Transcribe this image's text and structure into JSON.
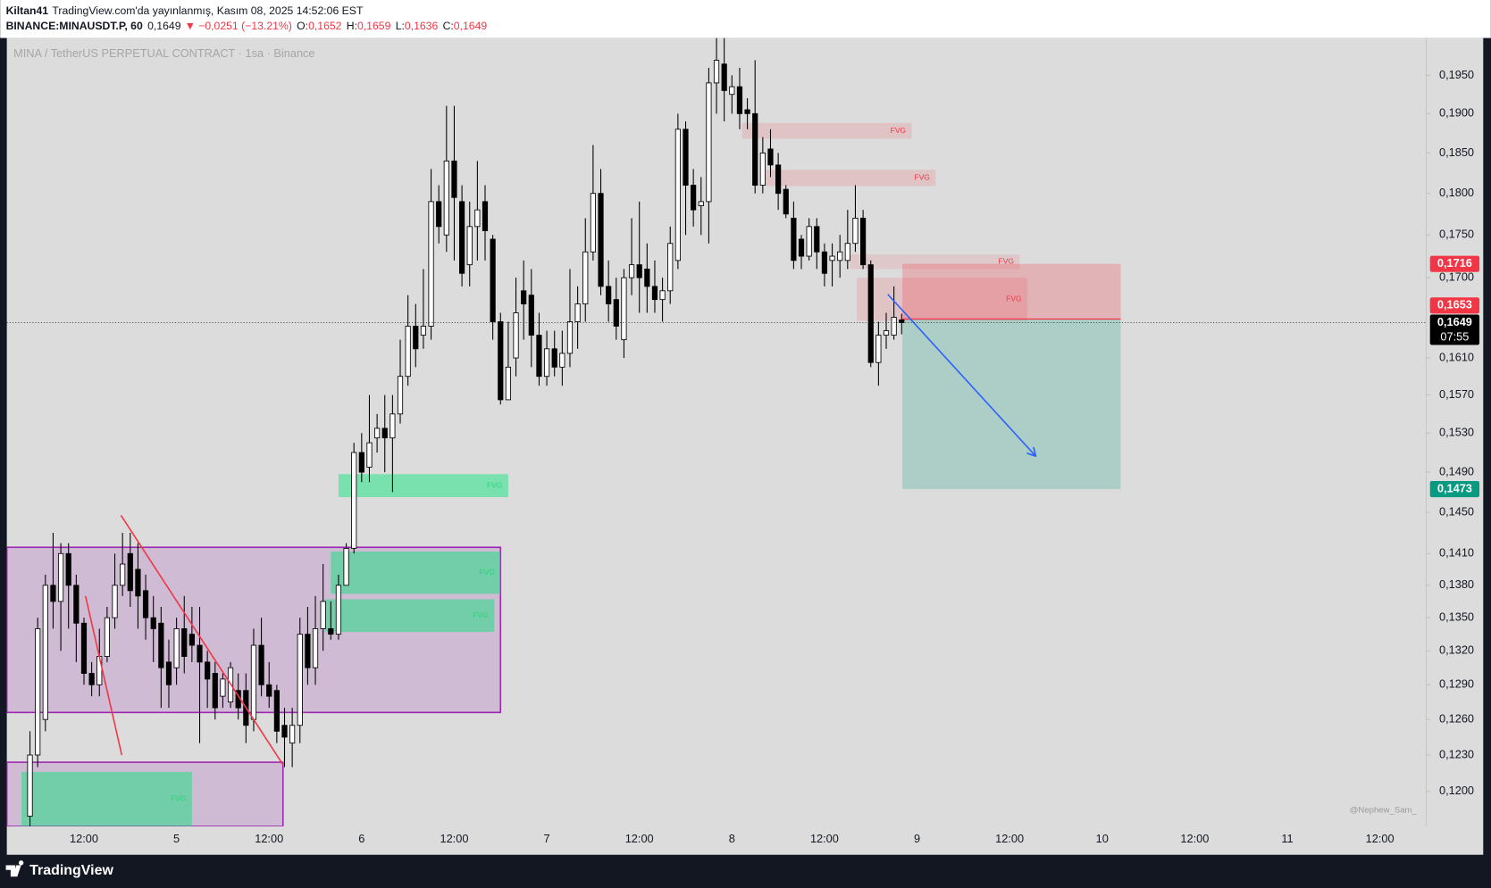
{
  "header": {
    "author": "Kiltan41",
    "published": "TradingView.com'da yayınlanmış, Kasım 08, 2025 14:52:06 EST",
    "symbol": "BINANCE:MINAUSDT.P, 60",
    "last": "0,1649",
    "change": "▼ −0,0251 (−13.21%)",
    "ohlc": [
      {
        "key": "O:",
        "value": "0,1652"
      },
      {
        "key": "H:",
        "value": "0,1659"
      },
      {
        "key": "L:",
        "value": "0,1636"
      },
      {
        "key": "C:",
        "value": "0,1649"
      }
    ]
  },
  "footer": {
    "brand": "TradingView"
  },
  "chart_data": {
    "type": "candlestick",
    "watermark": "MINA / TetherUS PERPETUAL CONTRACT · 1sa · Binance",
    "credit": "@Nephew_Sam_",
    "log_scale": true,
    "grid": false,
    "up_color": "#ffffff",
    "down_color": "#000000",
    "wick_color": "#000000",
    "ylim": [
      0.1172,
      0.2
    ],
    "yticks": [
      {
        "value": 0.195,
        "label": "0,1950"
      },
      {
        "value": 0.19,
        "label": "0,1900"
      },
      {
        "value": 0.185,
        "label": "0,1850"
      },
      {
        "value": 0.18,
        "label": "0,1800"
      },
      {
        "value": 0.175,
        "label": "0,1750"
      },
      {
        "value": 0.17,
        "label": "0,1700"
      },
      {
        "value": 0.161,
        "label": "0,1610"
      },
      {
        "value": 0.157,
        "label": "0,1570"
      },
      {
        "value": 0.153,
        "label": "0,1530"
      },
      {
        "value": 0.149,
        "label": "0,1490"
      },
      {
        "value": 0.145,
        "label": "0,1450"
      },
      {
        "value": 0.141,
        "label": "0,1410"
      },
      {
        "value": 0.138,
        "label": "0,1380"
      },
      {
        "value": 0.135,
        "label": "0,1350"
      },
      {
        "value": 0.132,
        "label": "0,1320"
      },
      {
        "value": 0.129,
        "label": "0,1290"
      },
      {
        "value": 0.126,
        "label": "0,1260"
      },
      {
        "value": 0.123,
        "label": "0,1230"
      },
      {
        "value": 0.12,
        "label": "0,1200"
      }
    ],
    "xlim": [
      2,
      186
    ],
    "xticks": [
      {
        "value": 12,
        "label": "12:00"
      },
      {
        "value": 24,
        "label": "5"
      },
      {
        "value": 36,
        "label": "12:00"
      },
      {
        "value": 48,
        "label": "6"
      },
      {
        "value": 60,
        "label": "12:00"
      },
      {
        "value": 72,
        "label": "7"
      },
      {
        "value": 84,
        "label": "12:00"
      },
      {
        "value": 96,
        "label": "8"
      },
      {
        "value": 108,
        "label": "12:00"
      },
      {
        "value": 120,
        "label": "9"
      },
      {
        "value": 132,
        "label": "12:00"
      },
      {
        "value": 144,
        "label": "10"
      },
      {
        "value": 156,
        "label": "12:00"
      },
      {
        "value": 168,
        "label": "11"
      },
      {
        "value": 180,
        "label": "12:00"
      }
    ],
    "x": [
      5,
      6,
      7,
      8,
      9,
      10,
      11,
      12,
      13,
      14,
      15,
      16,
      17,
      18,
      19,
      20,
      21,
      22,
      23,
      24,
      25,
      26,
      27,
      28,
      29,
      30,
      31,
      32,
      33,
      34,
      35,
      36,
      37,
      38,
      39,
      40,
      41,
      42,
      43,
      44,
      45,
      46,
      47,
      48,
      49,
      50,
      51,
      52,
      53,
      54,
      55,
      56,
      57,
      58,
      59,
      60,
      61,
      62,
      63,
      64,
      65,
      66,
      67,
      68,
      69,
      70,
      71,
      72,
      73,
      74,
      75,
      76,
      77,
      78,
      79,
      80,
      81,
      82,
      83,
      84,
      85,
      86,
      87,
      88,
      89,
      90,
      91,
      92,
      93,
      94,
      95,
      96,
      97,
      98,
      99,
      100,
      101,
      102,
      103,
      104,
      105,
      106,
      107,
      108,
      109,
      110,
      111,
      112,
      113,
      114,
      115,
      116,
      117,
      118
    ],
    "open": [
      0.118,
      0.123,
      0.126,
      0.138,
      0.1365,
      0.141,
      0.138,
      0.1345,
      0.13,
      0.129,
      0.1315,
      0.135,
      0.138,
      0.141,
      0.1395,
      0.1375,
      0.135,
      0.1345,
      0.131,
      0.1305,
      0.134,
      0.1335,
      0.1325,
      0.131,
      0.13,
      0.128,
      0.1275,
      0.1285,
      0.1285,
      0.126,
      0.1325,
      0.129,
      0.1285,
      0.1255,
      0.124,
      0.1255,
      0.1335,
      0.1305,
      0.134,
      0.134,
      0.1335,
      0.138,
      0.1415,
      0.151,
      0.1495,
      0.1525,
      0.1535,
      0.1525,
      0.155,
      0.159,
      0.1645,
      0.1635,
      0.1645,
      0.179,
      0.175,
      0.184,
      0.179,
      0.1715,
      0.176,
      0.179,
      0.1745,
      0.165,
      0.1565,
      0.161,
      0.1685,
      0.168,
      0.1635,
      0.159,
      0.162,
      0.16,
      0.1615,
      0.165,
      0.167,
      0.173,
      0.18,
      0.169,
      0.1675,
      0.163,
      0.17,
      0.1715,
      0.171,
      0.169,
      0.1675,
      0.1685,
      0.172,
      0.188,
      0.181,
      0.1785,
      0.179,
      0.194,
      0.1965,
      0.1925,
      0.1935,
      0.1905,
      0.19,
      0.181,
      0.1855,
      0.1835,
      0.1805,
      0.177,
      0.1745,
      0.1725,
      0.176,
      0.173,
      0.172,
      0.172,
      0.172,
      0.174,
      0.177,
      0.1715,
      0.1605,
      0.1635,
      0.1635,
      0.1652
    ],
    "high": [
      0.125,
      0.135,
      0.139,
      0.143,
      0.142,
      0.142,
      0.139,
      0.135,
      0.131,
      0.134,
      0.136,
      0.141,
      0.143,
      0.143,
      0.142,
      0.139,
      0.137,
      0.136,
      0.133,
      0.135,
      0.137,
      0.136,
      0.136,
      0.132,
      0.131,
      0.13,
      0.131,
      0.13,
      0.13,
      0.134,
      0.135,
      0.131,
      0.129,
      0.127,
      0.127,
      0.135,
      0.136,
      0.137,
      0.14,
      0.1365,
      0.139,
      0.142,
      0.152,
      0.153,
      0.157,
      0.155,
      0.157,
      0.157,
      0.163,
      0.168,
      0.167,
      0.171,
      0.183,
      0.181,
      0.191,
      0.191,
      0.181,
      0.179,
      0.184,
      0.181,
      0.175,
      0.166,
      0.165,
      0.17,
      0.172,
      0.171,
      0.166,
      0.164,
      0.164,
      0.164,
      0.171,
      0.169,
      0.177,
      0.186,
      0.183,
      0.172,
      0.17,
      0.171,
      0.177,
      0.179,
      0.174,
      0.172,
      0.17,
      0.176,
      0.19,
      0.189,
      0.183,
      0.182,
      0.196,
      0.2,
      0.2,
      0.195,
      0.196,
      0.192,
      0.197,
      0.187,
      0.188,
      0.185,
      0.181,
      0.179,
      0.175,
      0.177,
      0.177,
      0.174,
      0.174,
      0.175,
      0.178,
      0.181,
      0.178,
      0.172,
      0.165,
      0.166,
      0.169,
      0.1659
    ],
    "low": [
      0.117,
      0.122,
      0.125,
      0.134,
      0.132,
      0.134,
      0.131,
      0.129,
      0.128,
      0.128,
      0.131,
      0.134,
      0.137,
      0.136,
      0.134,
      0.133,
      0.131,
      0.127,
      0.127,
      0.129,
      0.13,
      0.131,
      0.124,
      0.127,
      0.126,
      0.127,
      0.127,
      0.126,
      0.124,
      0.125,
      0.128,
      0.127,
      0.124,
      0.122,
      0.122,
      0.124,
      0.129,
      0.129,
      0.132,
      0.133,
      0.133,
      0.138,
      0.141,
      0.148,
      0.148,
      0.151,
      0.149,
      0.147,
      0.154,
      0.158,
      0.16,
      0.162,
      0.163,
      0.174,
      0.173,
      0.172,
      0.169,
      0.169,
      0.172,
      0.172,
      0.163,
      0.156,
      0.1565,
      0.159,
      0.163,
      0.16,
      0.158,
      0.158,
      0.159,
      0.158,
      0.16,
      0.162,
      0.165,
      0.172,
      0.168,
      0.165,
      0.163,
      0.161,
      0.168,
      0.166,
      0.166,
      0.166,
      0.165,
      0.167,
      0.171,
      0.175,
      0.176,
      0.175,
      0.174,
      0.19,
      0.189,
      0.19,
      0.188,
      0.188,
      0.18,
      0.18,
      0.182,
      0.178,
      0.177,
      0.171,
      0.171,
      0.172,
      0.171,
      0.169,
      0.169,
      0.17,
      0.171,
      0.173,
      0.171,
      0.16,
      0.158,
      0.162,
      0.163,
      0.1636
    ],
    "close": [
      0.123,
      0.134,
      0.138,
      0.1365,
      0.141,
      0.138,
      0.1345,
      0.13,
      0.129,
      0.1315,
      0.135,
      0.138,
      0.14,
      0.1375,
      0.137,
      0.135,
      0.134,
      0.1305,
      0.129,
      0.134,
      0.1315,
      0.1325,
      0.131,
      0.1295,
      0.127,
      0.1295,
      0.1305,
      0.127,
      0.1255,
      0.1325,
      0.129,
      0.128,
      0.125,
      0.1245,
      0.1255,
      0.1335,
      0.1305,
      0.134,
      0.1365,
      0.1335,
      0.138,
      0.1415,
      0.151,
      0.149,
      0.152,
      0.1535,
      0.1525,
      0.155,
      0.159,
      0.1645,
      0.162,
      0.1645,
      0.179,
      0.176,
      0.184,
      0.1795,
      0.1705,
      0.176,
      0.178,
      0.1755,
      0.165,
      0.1565,
      0.16,
      0.166,
      0.167,
      0.1635,
      0.159,
      0.162,
      0.16,
      0.1615,
      0.165,
      0.167,
      0.173,
      0.18,
      0.169,
      0.167,
      0.1645,
      0.17,
      0.1715,
      0.17,
      0.169,
      0.1675,
      0.1685,
      0.174,
      0.188,
      0.181,
      0.178,
      0.179,
      0.194,
      0.197,
      0.193,
      0.1935,
      0.19,
      0.19,
      0.181,
      0.185,
      0.1835,
      0.18,
      0.1775,
      0.172,
      0.1725,
      0.176,
      0.173,
      0.1705,
      0.1725,
      0.173,
      0.174,
      0.177,
      0.1715,
      0.1605,
      0.1635,
      0.164,
      0.1655,
      0.1649
    ],
    "zones": [
      {
        "x": [
          2,
          66
        ],
        "y": [
          0.1266,
          0.1416
        ],
        "color": "#9c27b0",
        "opacity": 0.18,
        "stroke": "#9c27b0"
      },
      {
        "x": [
          2,
          37.8
        ],
        "y": [
          0.1172,
          0.1224
        ],
        "color": "#9c27b0",
        "opacity": 0.18,
        "stroke": "#9c27b0"
      },
      {
        "label": "FVG",
        "x": [
          45,
          67
        ],
        "y": [
          0.1465,
          0.1488
        ],
        "color": "#00e676",
        "opacity": 0.45,
        "label_color": "#2bd47a"
      },
      {
        "label": "FVG",
        "x": [
          44,
          66
        ],
        "y": [
          0.1372,
          0.1412
        ],
        "color": "#00e676",
        "opacity": 0.45,
        "label_color": "#2bd47a"
      },
      {
        "label": "FVG",
        "x": [
          43.3,
          65.2
        ],
        "y": [
          0.1337,
          0.1367
        ],
        "color": "#00e676",
        "opacity": 0.45,
        "label_color": "#2bd47a"
      },
      {
        "label": "FVG",
        "x": [
          3.9,
          26
        ],
        "y": [
          0.1172,
          0.1216
        ],
        "color": "#00e676",
        "opacity": 0.45,
        "label_color": "#2bd47a"
      },
      {
        "label": "FVG",
        "x": [
          97.3,
          119.3
        ],
        "y": [
          0.1868,
          0.1888
        ],
        "color": "#f23645",
        "opacity": 0.15,
        "label_color": "#f23645"
      },
      {
        "label": "FVG",
        "x": [
          100.2,
          122.4
        ],
        "y": [
          0.1809,
          0.1829
        ],
        "color": "#f23645",
        "opacity": 0.15,
        "label_color": "#f23645"
      },
      {
        "label": "FVG",
        "x": [
          111.3,
          133.3
        ],
        "y": [
          0.171,
          0.1727
        ],
        "color": "#f23645",
        "opacity": 0.12,
        "label_color": "#f23645"
      },
      {
        "label": "FVG",
        "x": [
          112.2,
          134.3
        ],
        "y": [
          0.1651,
          0.17
        ],
        "color": "#f23645",
        "opacity": 0.15,
        "label_color": "#f23645"
      }
    ],
    "position": {
      "x": [
        118.1,
        146.4
      ],
      "entry": 0.1653,
      "stop": 0.1716,
      "target": 0.1473,
      "stop_color": "#f23645",
      "target_color": "#089981"
    },
    "lines": [
      {
        "x": [
          12.2,
          16.9
        ],
        "y": [
          0.137,
          0.123
        ],
        "color": "#f23645"
      },
      {
        "x": [
          16.8,
          37.8
        ],
        "y": [
          0.1447,
          0.1222
        ],
        "color": "#f23645"
      },
      {
        "x": [
          116.2,
          135.3
        ],
        "y": [
          0.1681,
          0.1507
        ],
        "color": "#2962ff",
        "arrow": true
      }
    ],
    "price_labels": [
      {
        "value": 0.1716,
        "label": "0,1716",
        "color": "#f23645"
      },
      {
        "value": 0.1653,
        "label": "0,1653",
        "color": "#f23645"
      },
      {
        "value": 0.1649,
        "label": "0,1649",
        "countdown": "07:55",
        "color": "#000000",
        "last": true
      },
      {
        "value": 0.1473,
        "label": "0,1473",
        "color": "#089981"
      }
    ]
  }
}
